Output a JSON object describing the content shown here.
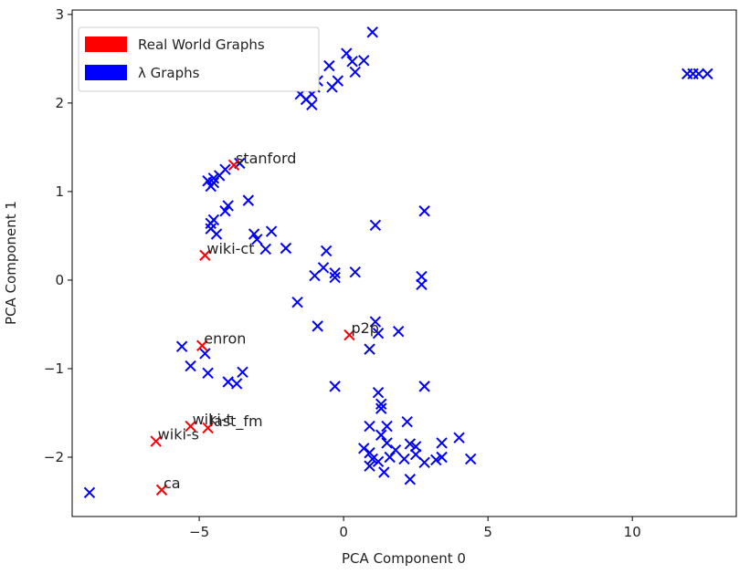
{
  "chart_data": {
    "type": "scatter",
    "title": "",
    "xlabel": "PCA Component 0",
    "ylabel": "PCA Component 1",
    "xlim": [
      -9.4,
      13.6
    ],
    "ylim": [
      -2.67,
      3.05
    ],
    "xticks": [
      -5,
      0,
      5,
      10
    ],
    "yticks": [
      -2,
      -1,
      0,
      1,
      2,
      3
    ],
    "grid": false,
    "legend_position": "top-left",
    "marker": "x",
    "series": [
      {
        "name": "Real World Graphs",
        "color": "#ff0000",
        "points": [
          {
            "x": -3.8,
            "y": 1.3,
            "label": "stanford"
          },
          {
            "x": -4.8,
            "y": 0.28,
            "label": "wiki-ct"
          },
          {
            "x": -4.9,
            "y": -0.74,
            "label": "enron"
          },
          {
            "x": 0.2,
            "y": -0.62,
            "label": "p2p"
          },
          {
            "x": -5.3,
            "y": -1.65,
            "label": "wiki-t"
          },
          {
            "x": -4.7,
            "y": -1.67,
            "label": "last_fm"
          },
          {
            "x": -6.5,
            "y": -1.82,
            "label": "wiki-s"
          },
          {
            "x": -6.3,
            "y": -2.37,
            "label": "ca"
          }
        ]
      },
      {
        "name": "λ Graphs",
        "color": "#0000ff",
        "points": [
          {
            "x": 1.0,
            "y": 2.8
          },
          {
            "x": 0.1,
            "y": 2.56
          },
          {
            "x": 0.3,
            "y": 2.47
          },
          {
            "x": 0.7,
            "y": 2.48
          },
          {
            "x": 0.4,
            "y": 2.35
          },
          {
            "x": -0.5,
            "y": 2.42
          },
          {
            "x": -0.2,
            "y": 2.25
          },
          {
            "x": -0.4,
            "y": 2.18
          },
          {
            "x": -0.9,
            "y": 2.25
          },
          {
            "x": -1.0,
            "y": 2.18
          },
          {
            "x": -1.1,
            "y": 2.1
          },
          {
            "x": -1.5,
            "y": 2.1
          },
          {
            "x": -1.3,
            "y": 2.04
          },
          {
            "x": -1.1,
            "y": 1.98
          },
          {
            "x": 11.9,
            "y": 2.33
          },
          {
            "x": 12.1,
            "y": 2.33
          },
          {
            "x": 12.3,
            "y": 2.33
          },
          {
            "x": 12.6,
            "y": 2.33
          },
          {
            "x": -3.6,
            "y": 1.32
          },
          {
            "x": -4.1,
            "y": 1.25
          },
          {
            "x": -4.3,
            "y": 1.18
          },
          {
            "x": -4.5,
            "y": 1.15
          },
          {
            "x": -4.7,
            "y": 1.12
          },
          {
            "x": -4.5,
            "y": 1.1
          },
          {
            "x": -4.6,
            "y": 1.06
          },
          {
            "x": -3.3,
            "y": 0.9
          },
          {
            "x": -4.0,
            "y": 0.84
          },
          {
            "x": -4.1,
            "y": 0.78
          },
          {
            "x": -4.5,
            "y": 0.68
          },
          {
            "x": -4.6,
            "y": 0.64
          },
          {
            "x": -4.6,
            "y": 0.58
          },
          {
            "x": -4.4,
            "y": 0.52
          },
          {
            "x": -3.1,
            "y": 0.52
          },
          {
            "x": -3.0,
            "y": 0.46
          },
          {
            "x": -2.5,
            "y": 0.55
          },
          {
            "x": -2.7,
            "y": 0.35
          },
          {
            "x": -2.0,
            "y": 0.36
          },
          {
            "x": 1.1,
            "y": 0.62
          },
          {
            "x": 2.8,
            "y": 0.78
          },
          {
            "x": -0.6,
            "y": 0.33
          },
          {
            "x": -0.7,
            "y": 0.14
          },
          {
            "x": -1.0,
            "y": 0.05
          },
          {
            "x": -0.3,
            "y": 0.08
          },
          {
            "x": -0.3,
            "y": 0.03
          },
          {
            "x": 0.4,
            "y": 0.09
          },
          {
            "x": 2.7,
            "y": 0.04
          },
          {
            "x": 2.7,
            "y": -0.05
          },
          {
            "x": -1.6,
            "y": -0.25
          },
          {
            "x": -0.9,
            "y": -0.52
          },
          {
            "x": 1.1,
            "y": -0.47
          },
          {
            "x": 1.2,
            "y": -0.6
          },
          {
            "x": 1.9,
            "y": -0.58
          },
          {
            "x": 0.9,
            "y": -0.78
          },
          {
            "x": -5.6,
            "y": -0.75
          },
          {
            "x": -4.8,
            "y": -0.83
          },
          {
            "x": -5.3,
            "y": -0.97
          },
          {
            "x": -4.7,
            "y": -1.05
          },
          {
            "x": -3.5,
            "y": -1.04
          },
          {
            "x": -4.0,
            "y": -1.15
          },
          {
            "x": -3.7,
            "y": -1.17
          },
          {
            "x": -0.3,
            "y": -1.2
          },
          {
            "x": 2.8,
            "y": -1.2
          },
          {
            "x": 1.2,
            "y": -1.27
          },
          {
            "x": 1.3,
            "y": -1.4
          },
          {
            "x": 1.3,
            "y": -1.45
          },
          {
            "x": 0.9,
            "y": -1.65
          },
          {
            "x": 1.5,
            "y": -1.65
          },
          {
            "x": 2.2,
            "y": -1.6
          },
          {
            "x": 1.3,
            "y": -1.75
          },
          {
            "x": 1.5,
            "y": -1.84
          },
          {
            "x": 0.7,
            "y": -1.9
          },
          {
            "x": 0.9,
            "y": -1.95
          },
          {
            "x": 1.8,
            "y": -1.92
          },
          {
            "x": 2.3,
            "y": -1.85
          },
          {
            "x": 2.5,
            "y": -1.88
          },
          {
            "x": 3.4,
            "y": -1.84
          },
          {
            "x": 4.0,
            "y": -1.78
          },
          {
            "x": 1.0,
            "y": -2.02
          },
          {
            "x": 1.2,
            "y": -2.05
          },
          {
            "x": 1.6,
            "y": -2.0
          },
          {
            "x": 2.1,
            "y": -2.02
          },
          {
            "x": 2.5,
            "y": -1.97
          },
          {
            "x": 2.8,
            "y": -2.06
          },
          {
            "x": 3.2,
            "y": -2.03
          },
          {
            "x": 3.4,
            "y": -2.0
          },
          {
            "x": 4.4,
            "y": -2.02
          },
          {
            "x": 0.9,
            "y": -2.1
          },
          {
            "x": 1.4,
            "y": -2.17
          },
          {
            "x": 2.3,
            "y": -2.25
          },
          {
            "x": -8.8,
            "y": -2.4
          }
        ]
      }
    ]
  }
}
